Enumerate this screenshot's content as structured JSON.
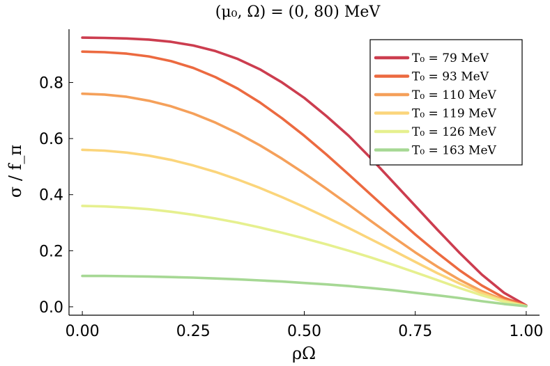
{
  "chart_data": {
    "type": "line",
    "title": "(μ₀, Ω) = (0, 80) MeV",
    "xlabel": "ρΩ",
    "ylabel": "σ / f_π",
    "xlim": [
      -0.03,
      1.03
    ],
    "ylim": [
      -0.03,
      0.99
    ],
    "xticks": [
      0.0,
      0.25,
      0.5,
      0.75,
      1.0
    ],
    "xtick_labels": [
      "0.00",
      "0.25",
      "0.50",
      "0.75",
      "1.00"
    ],
    "yticks": [
      0.0,
      0.2,
      0.4,
      0.6,
      0.8
    ],
    "ytick_labels": [
      "0.0",
      "0.2",
      "0.4",
      "0.6",
      "0.8"
    ],
    "grid": false,
    "legend_position": "top-right",
    "x": [
      0.0,
      0.05,
      0.1,
      0.15,
      0.2,
      0.25,
      0.3,
      0.35,
      0.4,
      0.45,
      0.5,
      0.55,
      0.6,
      0.65,
      0.7,
      0.75,
      0.8,
      0.85,
      0.9,
      0.95,
      1.0
    ],
    "series": [
      {
        "name": "T₀ = 79 MeV",
        "color": "#cc3d4f",
        "values": [
          0.96,
          0.959,
          0.957,
          0.953,
          0.945,
          0.932,
          0.912,
          0.884,
          0.847,
          0.8,
          0.745,
          0.68,
          0.61,
          0.53,
          0.445,
          0.36,
          0.275,
          0.192,
          0.115,
          0.05,
          0.005
        ]
      },
      {
        "name": "T₀ = 93 MeV",
        "color": "#ec6a40",
        "values": [
          0.91,
          0.908,
          0.903,
          0.893,
          0.876,
          0.852,
          0.819,
          0.778,
          0.729,
          0.672,
          0.61,
          0.543,
          0.472,
          0.4,
          0.328,
          0.258,
          0.192,
          0.13,
          0.076,
          0.032,
          0.004
        ]
      },
      {
        "name": "T₀ = 110 MeV",
        "color": "#f5a05a",
        "values": [
          0.76,
          0.757,
          0.749,
          0.735,
          0.715,
          0.689,
          0.657,
          0.619,
          0.576,
          0.528,
          0.476,
          0.421,
          0.364,
          0.306,
          0.249,
          0.194,
          0.143,
          0.096,
          0.056,
          0.024,
          0.003
        ]
      },
      {
        "name": "T₀ = 119 MeV",
        "color": "#fbd57b",
        "values": [
          0.56,
          0.557,
          0.55,
          0.539,
          0.524,
          0.504,
          0.481,
          0.454,
          0.424,
          0.391,
          0.356,
          0.319,
          0.281,
          0.241,
          0.201,
          0.16,
          0.12,
          0.083,
          0.049,
          0.021,
          0.002
        ]
      },
      {
        "name": "T₀ = 126 MeV",
        "color": "#e6f08f",
        "values": [
          0.36,
          0.358,
          0.354,
          0.348,
          0.339,
          0.328,
          0.315,
          0.3,
          0.283,
          0.264,
          0.244,
          0.223,
          0.2,
          0.176,
          0.15,
          0.123,
          0.095,
          0.067,
          0.041,
          0.018,
          0.002
        ]
      },
      {
        "name": "T₀ = 163 MeV",
        "color": "#a6d894",
        "values": [
          0.11,
          0.11,
          0.109,
          0.108,
          0.106,
          0.104,
          0.101,
          0.098,
          0.094,
          0.09,
          0.085,
          0.08,
          0.074,
          0.067,
          0.059,
          0.05,
          0.041,
          0.031,
          0.02,
          0.01,
          0.002
        ]
      }
    ]
  }
}
